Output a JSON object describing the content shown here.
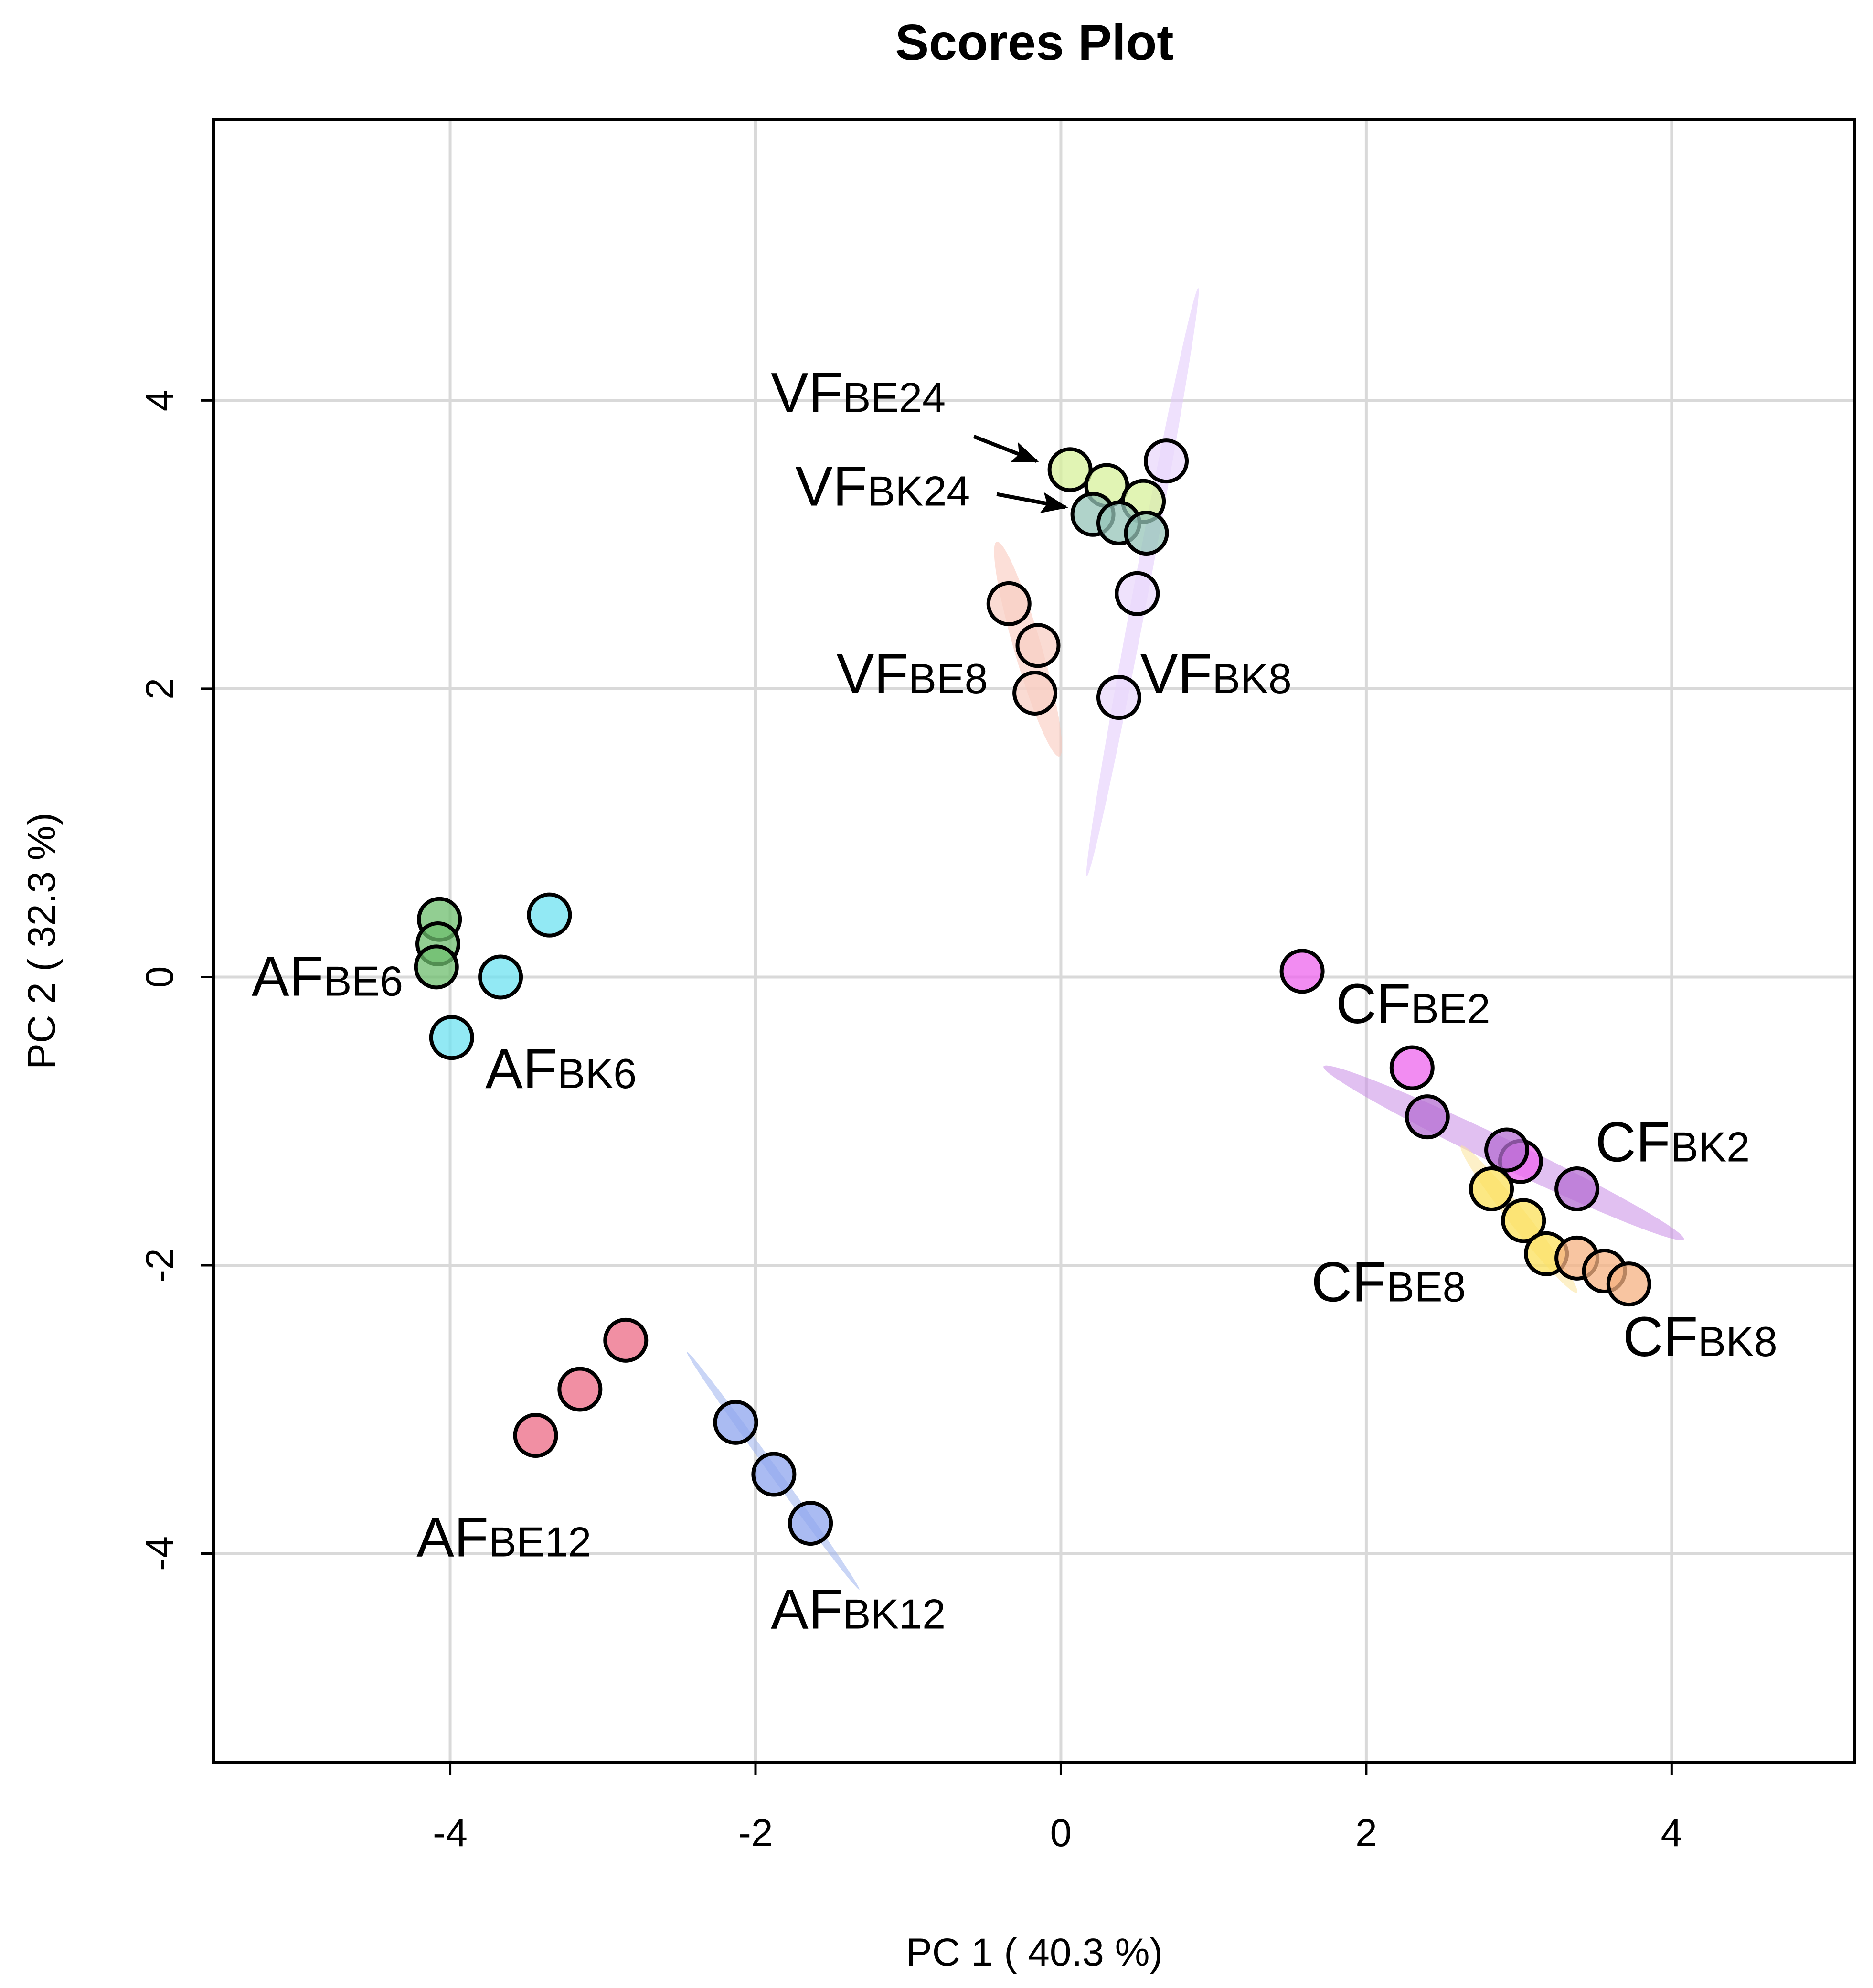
{
  "chart_data": {
    "type": "scatter",
    "title": "Scores Plot",
    "xlabel": "PC 1 ( 40.3 %)",
    "ylabel": "PC 2 ( 32.3 %)",
    "xlim": [
      -5.55,
      5.2
    ],
    "ylim": [
      -5.45,
      5.95
    ],
    "xticks": [
      -4,
      -2,
      0,
      2,
      4
    ],
    "yticks": [
      -4,
      -2,
      0,
      2,
      4
    ],
    "xtick_labels": [
      "-4",
      "-2",
      "0",
      "2",
      "4"
    ],
    "ytick_labels": [
      "-4",
      "-2",
      "0",
      "2",
      "4"
    ],
    "grid": true,
    "series": [
      {
        "name": "AFBE6",
        "main": "AF",
        "sub": "BE6",
        "color": "#6dbe6d",
        "points": [
          [
            -4.07,
            0.4
          ],
          [
            -4.08,
            0.23
          ],
          [
            -4.09,
            0.07
          ]
        ]
      },
      {
        "name": "AFBK6",
        "main": "AF",
        "sub": "BK6",
        "color": "#6ee2f0",
        "points": [
          [
            -3.35,
            0.43
          ],
          [
            -3.67,
            0.0
          ],
          [
            -3.99,
            -0.42
          ]
        ]
      },
      {
        "name": "AFBE12",
        "main": "AF",
        "sub": "BE12",
        "color": "#ec6a84",
        "points": [
          [
            -2.85,
            -2.52
          ],
          [
            -3.15,
            -2.86
          ],
          [
            -3.44,
            -3.18
          ]
        ]
      },
      {
        "name": "AFBK12",
        "main": "AF",
        "sub": "BK12",
        "color": "#8da4ee",
        "points": [
          [
            -2.13,
            -3.09
          ],
          [
            -1.88,
            -3.45
          ],
          [
            -1.64,
            -3.79
          ]
        ]
      },
      {
        "name": "VFBE24",
        "main": "VF",
        "sub": "BE24",
        "color": "#d7f09b",
        "points": [
          [
            0.06,
            3.52
          ],
          [
            0.3,
            3.41
          ],
          [
            0.54,
            3.3
          ]
        ]
      },
      {
        "name": "VFBK24",
        "main": "VF",
        "sub": "BK24",
        "color": "#96c4b8",
        "points": [
          [
            0.21,
            3.21
          ],
          [
            0.38,
            3.15
          ],
          [
            0.56,
            3.08
          ]
        ]
      },
      {
        "name": "VFBE8",
        "main": "VF",
        "sub": "BE8",
        "color": "#f8cfc4",
        "points": [
          [
            -0.34,
            2.59
          ],
          [
            -0.15,
            2.3
          ],
          [
            -0.17,
            1.97
          ]
        ]
      },
      {
        "name": "VFBK8",
        "main": "VF",
        "sub": "BK8",
        "color": "#ead8fb",
        "points": [
          [
            0.69,
            3.58
          ],
          [
            0.5,
            2.66
          ],
          [
            0.38,
            1.94
          ]
        ]
      },
      {
        "name": "CFBE2",
        "main": "CF",
        "sub": "BE2",
        "color": "#ee66ee",
        "points": [
          [
            1.58,
            0.04
          ],
          [
            2.3,
            -0.63
          ],
          [
            3.01,
            -1.28
          ]
        ]
      },
      {
        "name": "CFBK2",
        "main": "CF",
        "sub": "BK2",
        "color": "#b46ed2",
        "points": [
          [
            2.4,
            -0.97
          ],
          [
            2.92,
            -1.2
          ],
          [
            3.38,
            -1.47
          ]
        ]
      },
      {
        "name": "CFBE8",
        "main": "CF",
        "sub": "BE8",
        "color": "#fbe05a",
        "points": [
          [
            2.82,
            -1.47
          ],
          [
            3.03,
            -1.69
          ],
          [
            3.18,
            -1.92
          ]
        ]
      },
      {
        "name": "CFBK8",
        "main": "CF",
        "sub": "BK8",
        "color": "#f5b282",
        "points": [
          [
            3.38,
            -1.95
          ],
          [
            3.56,
            -2.04
          ],
          [
            3.72,
            -2.13
          ]
        ]
      }
    ],
    "ellipses": [
      {
        "group": "VFBK8",
        "color": "#e2c8fb",
        "center": [
          0.45,
          2.75
        ],
        "axis_from": [
          0.9,
          4.78
        ],
        "axis_to": [
          0.17,
          0.7
        ],
        "minor_halfwidth": 0.05
      },
      {
        "group": "VFBE8",
        "color": "#f9c5b8",
        "center": [
          -0.24,
          2.3
        ],
        "axis_from": [
          -0.42,
          3.02
        ],
        "axis_to": [
          -0.01,
          1.53
        ],
        "minor_halfwidth": 0.09
      },
      {
        "group": "AFBK12",
        "color": "#9db3ee",
        "center": [
          -1.88,
          -3.42
        ],
        "axis_from": [
          -2.45,
          -2.6
        ],
        "axis_to": [
          -1.32,
          -4.25
        ],
        "minor_halfwidth": 0.03
      },
      {
        "group": "CFBK2",
        "color": "#c88ce6",
        "center": [
          2.89,
          -1.22
        ],
        "axis_from": [
          1.72,
          -0.62
        ],
        "axis_to": [
          4.08,
          -1.82
        ],
        "minor_halfwidth": 0.09
      },
      {
        "group": "CFBE8",
        "color": "#fbe49a",
        "center": [
          3.0,
          -1.68
        ],
        "axis_from": [
          2.62,
          -1.17
        ],
        "axis_to": [
          3.38,
          -2.19
        ],
        "minor_halfwidth": 0.06
      }
    ],
    "labels": [
      {
        "main": "VF",
        "sub": "BE24",
        "x": -1.9,
        "y": 3.92
      },
      {
        "main": "VF",
        "sub": "BK24",
        "x": -1.74,
        "y": 3.27
      },
      {
        "main": "VF",
        "sub": "BE8",
        "x": -1.47,
        "y": 1.97
      },
      {
        "main": "VF",
        "sub": "BK8",
        "x": 0.52,
        "y": 1.97
      },
      {
        "main": "AF",
        "sub": "BE6",
        "x": -5.3,
        "y": -0.13
      },
      {
        "main": "AF",
        "sub": "BK6",
        "x": -3.77,
        "y": -0.77
      },
      {
        "main": "AF",
        "sub": "BE12",
        "x": -4.22,
        "y": -4.02
      },
      {
        "main": "AF",
        "sub": "BK12",
        "x": -1.9,
        "y": -4.52
      },
      {
        "main": "CF",
        "sub": "BE2",
        "x": 1.8,
        "y": -0.32
      },
      {
        "main": "CF",
        "sub": "BK2",
        "x": 3.5,
        "y": -1.28
      },
      {
        "main": "CF",
        "sub": "BE8",
        "x": 1.64,
        "y": -2.25
      },
      {
        "main": "CF",
        "sub": "BK8",
        "x": 3.68,
        "y": -2.63
      }
    ],
    "arrows": [
      {
        "label": "VFBE24",
        "from": [
          -0.57,
          3.75
        ],
        "to": [
          -0.16,
          3.58
        ]
      },
      {
        "label": "VFBK24",
        "from": [
          -0.42,
          3.35
        ],
        "to": [
          0.03,
          3.26
        ]
      }
    ]
  }
}
